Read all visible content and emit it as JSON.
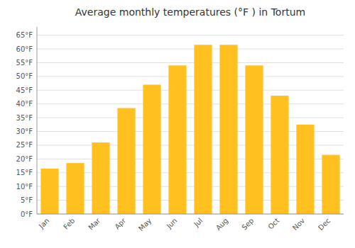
{
  "chart_data": {
    "type": "bar",
    "title": "Average monthly temperatures (°F ) in Tortum",
    "categories": [
      "Jan",
      "Feb",
      "Mar",
      "Apr",
      "May",
      "Jun",
      "Jul",
      "Aug",
      "Sep",
      "Oct",
      "Nov",
      "Dec"
    ],
    "values": [
      16.5,
      18.5,
      26,
      38.5,
      47,
      54,
      61.5,
      61.5,
      54,
      43,
      32.5,
      21.5
    ],
    "color": "#FFC020",
    "ylim": [
      0,
      68
    ],
    "yticks": [
      {
        "value": 0,
        "label": "0°F"
      },
      {
        "value": 5,
        "label": "5°F"
      },
      {
        "value": 10,
        "label": "10°F"
      },
      {
        "value": 15,
        "label": "15°F"
      },
      {
        "value": 20,
        "label": "20°F"
      },
      {
        "value": 25,
        "label": "25°F"
      },
      {
        "value": 30,
        "label": "30°F"
      },
      {
        "value": 35,
        "label": "35°F"
      },
      {
        "value": 40,
        "label": "40°F"
      },
      {
        "value": 45,
        "label": "45°F"
      },
      {
        "value": 50,
        "label": "50°F"
      },
      {
        "value": 55,
        "label": "55°F"
      },
      {
        "value": 60,
        "label": "60°F"
      },
      {
        "value": 65,
        "label": "65°F"
      }
    ],
    "grid": true
  }
}
